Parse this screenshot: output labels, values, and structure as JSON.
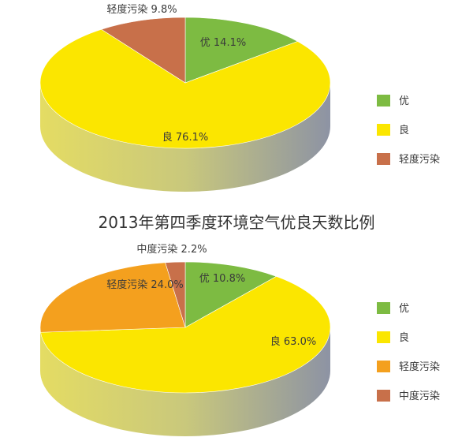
{
  "chart_data": [
    {
      "type": "pie",
      "title": "",
      "unit": "%",
      "slices": [
        {
          "name": "优",
          "value": 14.1,
          "label": "优 14.1%",
          "color": "#7dbb42"
        },
        {
          "name": "良",
          "value": 76.1,
          "label": "良 76.1%",
          "color": "#fbe600"
        },
        {
          "name": "轻度污染",
          "value": 9.8,
          "label": "轻度污染 9.8%",
          "color": "#c8704a"
        }
      ],
      "legend": [
        {
          "name": "优",
          "color": "#7dbb42"
        },
        {
          "name": "良",
          "color": "#fbe600"
        },
        {
          "name": "轻度污染",
          "color": "#c8704a"
        }
      ],
      "legend_position": "right"
    },
    {
      "type": "pie",
      "title": "2013年第四季度环境空气优良天数比例",
      "unit": "%",
      "slices": [
        {
          "name": "优",
          "value": 10.8,
          "label": "优 10.8%",
          "color": "#7dbb42"
        },
        {
          "name": "良",
          "value": 63.0,
          "label": "良 63.0%",
          "color": "#fbe600"
        },
        {
          "name": "轻度污染",
          "value": 24.0,
          "label": "轻度污染 24.0%",
          "color": "#f4a01e"
        },
        {
          "name": "中度污染",
          "value": 2.2,
          "label": "中度污染 2.2%",
          "color": "#c8704a"
        }
      ],
      "legend": [
        {
          "name": "优",
          "color": "#7dbb42"
        },
        {
          "name": "良",
          "color": "#fbe600"
        },
        {
          "name": "轻度污染",
          "color": "#f4a01e"
        },
        {
          "name": "中度污染",
          "color": "#c8704a"
        }
      ],
      "legend_position": "right"
    }
  ]
}
